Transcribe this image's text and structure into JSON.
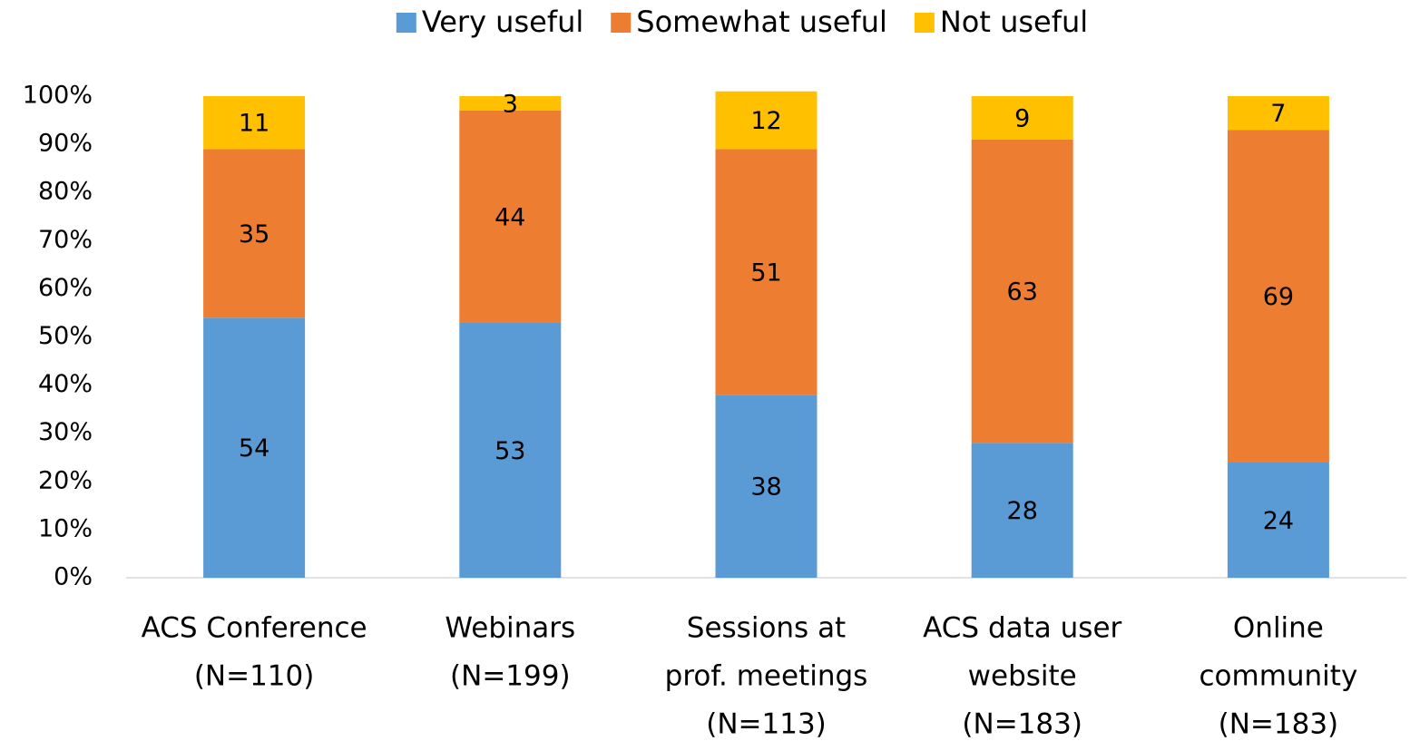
{
  "chart_data": {
    "type": "stacked_bar",
    "categories": [
      [
        "ACS Conference",
        "(N=110)"
      ],
      [
        "Webinars",
        "(N=199)"
      ],
      [
        "Sessions at",
        "prof. meetings",
        "(N=113)"
      ],
      [
        "ACS data user",
        "website",
        "(N=183)"
      ],
      [
        "Online",
        "community",
        "(N=183)"
      ]
    ],
    "series": [
      {
        "name": "Very useful",
        "color": "#5b9bd5",
        "values": [
          54,
          53,
          38,
          28,
          24
        ]
      },
      {
        "name": "Somewhat useful",
        "color": "#ed7d31",
        "values": [
          35,
          44,
          51,
          63,
          69
        ]
      },
      {
        "name": "Not useful",
        "color": "#ffc000",
        "values": [
          11,
          3,
          12,
          9,
          7
        ]
      }
    ],
    "ylim": [
      0,
      100
    ],
    "yticks": [
      {
        "value": 0,
        "label": "0%"
      },
      {
        "value": 10,
        "label": "10%"
      },
      {
        "value": 20,
        "label": "20%"
      },
      {
        "value": 30,
        "label": "30%"
      },
      {
        "value": 40,
        "label": "40%"
      },
      {
        "value": 50,
        "label": "50%"
      },
      {
        "value": 60,
        "label": "60%"
      },
      {
        "value": 70,
        "label": "70%"
      },
      {
        "value": 80,
        "label": "80%"
      },
      {
        "value": 90,
        "label": "90%"
      },
      {
        "value": 100,
        "label": "100%"
      }
    ],
    "legend": "top",
    "grid": false
  }
}
